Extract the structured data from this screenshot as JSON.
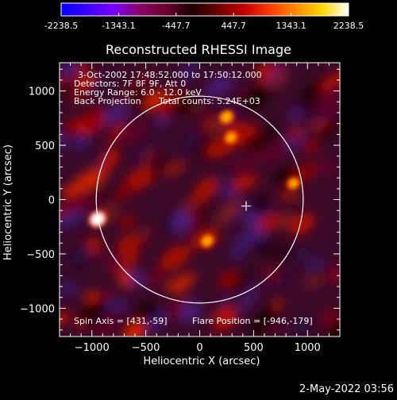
{
  "chart_data": {
    "type": "heatmap",
    "title": "Reconstructed RHESSI Image",
    "xlabel": "Heliocentric X (arcsec)",
    "ylabel": "Heliocentric Y (arcsec)",
    "xlim": [
      -1300,
      1300
    ],
    "ylim": [
      -1260,
      1260
    ],
    "xticks": [
      -1000,
      -500,
      0,
      500,
      1000
    ],
    "yticks": [
      -1000,
      -500,
      0,
      500,
      1000
    ],
    "grid": false,
    "colorbar": {
      "position": "top",
      "ticks": [
        "-2238.5",
        "-1343.1",
        "-447.7",
        "447.7",
        "1343.1",
        "2238.5"
      ],
      "range": [
        -2238.5,
        2238.5
      ],
      "colors": [
        "#0000ff",
        "#3c00ff",
        "#7a00ff",
        "#8a0068",
        "#6d0030",
        "#1a0000",
        "#6e0000",
        "#c40000",
        "#ff3a00",
        "#ff8c00",
        "#ffd700",
        "#ffffff"
      ]
    },
    "annotations": {
      "time": "3-Oct-2002 17:48:52.000 to 17:50:12.000",
      "detectors": "Detectors: 7F 8F 9F, Att 0",
      "energy": "Energy Range: 6.0 - 12.0 keV",
      "method": "Back Projection",
      "counts": "Total counts: 5.24E+03",
      "spin_axis": "Spin Axis = [431,-59]",
      "flare_position": "Flare Position = [-946,-179]"
    },
    "solar_disk": {
      "center": [
        0,
        0
      ],
      "radius_arcsec": 960,
      "color": "#ffffff"
    },
    "spin_axis_marker": [
      431,
      -59
    ],
    "flare_position": [
      -946,
      -179
    ],
    "bright_features": [
      {
        "x": -946,
        "y": -179,
        "value": 2238.5
      },
      {
        "x": 250,
        "y": 760,
        "value": 1343.1
      },
      {
        "x": 70,
        "y": -380,
        "value": 1000
      },
      {
        "x": 290,
        "y": 570,
        "value": 900
      },
      {
        "x": 870,
        "y": 150,
        "value": 800
      }
    ]
  },
  "footer": {
    "timestamp": "2-May-2022 03:56"
  }
}
